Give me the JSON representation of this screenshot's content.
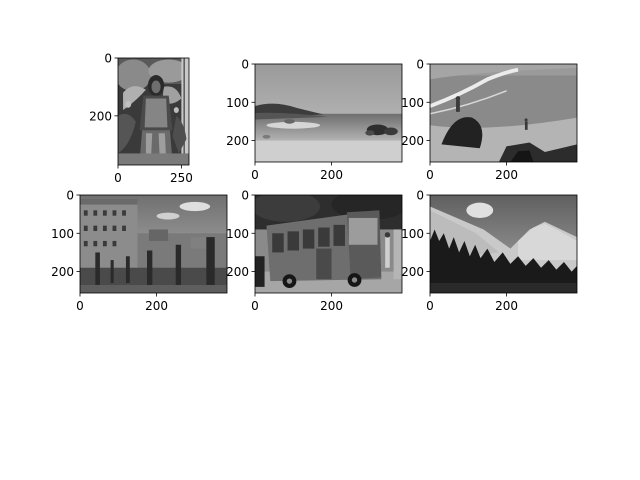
{
  "chart_data": [
    {
      "type": "heatmap",
      "colormap": "gray",
      "scene": "a figure in patterned ceremonial costume with feathers and foliage",
      "image_size": [
        280,
        370
      ],
      "xlim": [
        0,
        280
      ],
      "ylim": [
        370,
        0
      ],
      "xticks": [
        0,
        250
      ],
      "yticks": [
        0,
        200
      ],
      "x_tick_labels": [
        "0",
        "250"
      ],
      "y_tick_labels": [
        "0",
        "200"
      ]
    },
    {
      "type": "heatmap",
      "colormap": "gray",
      "scene": "tropical beach with boulders in shallow sea and a wooded headland",
      "image_size": [
        384,
        256
      ],
      "xlim": [
        0,
        384
      ],
      "ylim": [
        256,
        0
      ],
      "xticks": [
        0,
        200
      ],
      "yticks": [
        0,
        100,
        200
      ],
      "x_tick_labels": [
        "0",
        "200"
      ],
      "y_tick_labels": [
        "0",
        "100",
        "200"
      ]
    },
    {
      "type": "heatmap",
      "colormap": "gray",
      "scene": "breaking waves on a shore with a person standing on a dark rock and a child at the water's edge",
      "image_size": [
        384,
        256
      ],
      "xlim": [
        0,
        384
      ],
      "ylim": [
        256,
        0
      ],
      "xticks": [
        0,
        200
      ],
      "yticks": [
        0,
        100,
        200
      ],
      "x_tick_labels": [
        "0",
        "200"
      ],
      "y_tick_labels": [
        "0",
        "100",
        "200"
      ]
    },
    {
      "type": "heatmap",
      "colormap": "gray",
      "scene": "ancient ruins with standing columns in front of city buildings under a cloudy sky",
      "image_size": [
        384,
        256
      ],
      "xlim": [
        0,
        384
      ],
      "ylim": [
        256,
        0
      ],
      "xticks": [
        0,
        200
      ],
      "yticks": [
        0,
        100,
        200
      ],
      "x_tick_labels": [
        "0",
        "200"
      ],
      "y_tick_labels": [
        "0",
        "100",
        "200"
      ]
    },
    {
      "type": "heatmap",
      "colormap": "gray",
      "scene": "a city bus parked by a curb with trees and pedestrians",
      "image_size": [
        384,
        256
      ],
      "xlim": [
        0,
        384
      ],
      "ylim": [
        256,
        0
      ],
      "xticks": [
        0,
        200
      ],
      "yticks": [
        0,
        100,
        200
      ],
      "x_tick_labels": [
        "0",
        "200"
      ],
      "y_tick_labels": [
        "0",
        "100",
        "200"
      ]
    },
    {
      "type": "heatmap",
      "colormap": "gray",
      "scene": "snow-capped mountains above a dark pine forest",
      "image_size": [
        384,
        256
      ],
      "xlim": [
        0,
        384
      ],
      "ylim": [
        256,
        0
      ],
      "xticks": [
        0,
        200
      ],
      "yticks": [
        0,
        100,
        200
      ],
      "x_tick_labels": [
        "0",
        "200"
      ],
      "y_tick_labels": [
        "0",
        "100",
        "200"
      ]
    }
  ]
}
